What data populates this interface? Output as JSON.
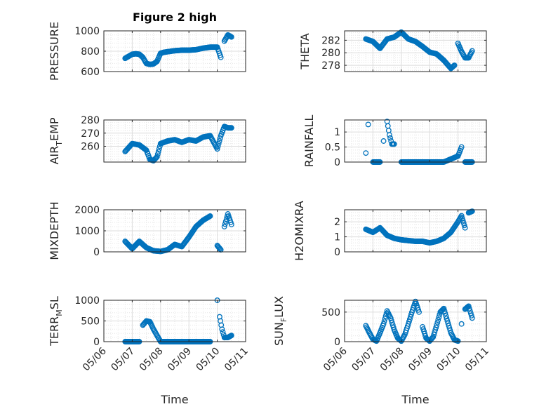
{
  "chart_data": [
    {
      "type": "scatter",
      "title": "Figure 2 high",
      "ylabel": {
        "main": "PRESSURE",
        "sub": "",
        "tail": ""
      },
      "xlabel": "",
      "xlim": [
        "05/06",
        "05/11"
      ],
      "ylim": [
        600,
        1000
      ],
      "yticks": [
        600,
        800,
        1000
      ],
      "grid": true,
      "x": [
        "05/06 18:00",
        "05/07 00:00",
        "05/07 03:00",
        "05/07 06:00",
        "05/07 09:00",
        "05/07 12:00",
        "05/07 15:00",
        "05/07 18:00",
        "05/07 21:00",
        "05/08 00:00",
        "05/08 03:00",
        "05/08 06:00",
        "05/08 09:00",
        "05/08 12:00",
        "05/08 18:00",
        "05/09 00:00",
        "05/09 06:00",
        "05/09 12:00",
        "05/09 18:00",
        "05/10 00:00",
        "05/10 03:00",
        "05/10 06:00",
        "05/10 09:00",
        "05/10 12:00"
      ],
      "y": [
        730,
        770,
        775,
        770,
        740,
        680,
        670,
        675,
        700,
        780,
        790,
        795,
        800,
        805,
        810,
        810,
        815,
        830,
        840,
        840,
        740,
        900,
        960,
        940
      ]
    },
    {
      "type": "scatter",
      "title": "",
      "ylabel": {
        "main": "THETA",
        "sub": "",
        "tail": ""
      },
      "xlabel": "",
      "xlim": [
        "05/06",
        "05/11"
      ],
      "ylim": [
        277,
        283.5
      ],
      "yticks": [
        278,
        280,
        282
      ],
      "grid": true,
      "x": [
        "05/06 18:00",
        "05/07 00:00",
        "05/07 06:00",
        "05/07 12:00",
        "05/07 18:00",
        "05/08 00:00",
        "05/08 06:00",
        "05/08 12:00",
        "05/08 18:00",
        "05/09 00:00",
        "05/09 06:00",
        "05/09 12:00",
        "05/09 18:00",
        "05/09 21:00",
        "05/10 00:00",
        "05/10 03:00",
        "05/10 06:00",
        "05/10 09:00",
        "05/10 12:00"
      ],
      "y": [
        282.2,
        281.8,
        280.7,
        282.2,
        282.5,
        283.3,
        282.2,
        281.8,
        281.0,
        280.1,
        279.8,
        278.8,
        277.5,
        278.0,
        281.5,
        280.2,
        279.2,
        279.2,
        280.3
      ]
    },
    {
      "type": "scatter",
      "title": "",
      "ylabel": {
        "main": "AIR",
        "sub": "T",
        "tail": "EMP"
      },
      "xlabel": "",
      "xlim": [
        "05/06",
        "05/11"
      ],
      "ylim": [
        248,
        280
      ],
      "yticks": [
        260,
        270,
        280
      ],
      "grid": true,
      "x": [
        "05/06 18:00",
        "05/07 00:00",
        "05/07 06:00",
        "05/07 12:00",
        "05/07 15:00",
        "05/07 18:00",
        "05/07 21:00",
        "05/08 00:00",
        "05/08 06:00",
        "05/08 12:00",
        "05/08 18:00",
        "05/09 00:00",
        "05/09 06:00",
        "05/09 12:00",
        "05/09 18:00",
        "05/10 00:00",
        "05/10 03:00",
        "05/10 06:00",
        "05/10 09:00",
        "05/10 12:00"
      ],
      "y": [
        256,
        262,
        261,
        257,
        250,
        249,
        252,
        262,
        264,
        265,
        263,
        265,
        264,
        267,
        268,
        258,
        268,
        275,
        274,
        274
      ]
    },
    {
      "type": "scatter",
      "title": "",
      "ylabel": {
        "main": "RAINFALL",
        "sub": "",
        "tail": ""
      },
      "xlabel": "",
      "xlim": [
        "05/06",
        "05/11"
      ],
      "ylim": [
        0,
        1.4
      ],
      "yticks": [
        0,
        0.5,
        1
      ],
      "grid": true,
      "x": [
        "05/06 18:00",
        "05/06 20:00",
        "05/07 00:00",
        "05/07 06:00",
        "05/07 09:00",
        "05/07 12:00",
        "05/07 14:00",
        "05/07 16:00",
        "05/07 18:00",
        "05/08 00:00",
        "05/08 12:00",
        "05/09 00:00",
        "05/09 12:00",
        "05/10 00:00",
        "05/10 03:00",
        "05/10 06:00",
        "05/10 12:00"
      ],
      "y": [
        0.3,
        1.25,
        0,
        0,
        0.7,
        1.35,
        0.9,
        0.6,
        0.6,
        0,
        0,
        0,
        0,
        0.2,
        0.5,
        0,
        0
      ]
    },
    {
      "type": "scatter",
      "title": "",
      "ylabel": {
        "main": "MIXDEPTH",
        "sub": "",
        "tail": ""
      },
      "xlabel": "",
      "xlim": [
        "05/06",
        "05/11"
      ],
      "ylim": [
        0,
        2000
      ],
      "yticks": [
        0,
        1000,
        2000
      ],
      "grid": true,
      "x": [
        "05/06 18:00",
        "05/07 00:00",
        "05/07 06:00",
        "05/07 12:00",
        "05/07 18:00",
        "05/08 00:00",
        "05/08 06:00",
        "05/08 12:00",
        "05/08 18:00",
        "05/09 00:00",
        "05/09 06:00",
        "05/09 12:00",
        "05/09 18:00",
        "05/10 00:00",
        "05/10 03:00",
        "05/10 06:00",
        "05/10 09:00",
        "05/10 12:00"
      ],
      "y": [
        500,
        150,
        500,
        200,
        50,
        20,
        100,
        350,
        250,
        700,
        1200,
        1500,
        1700,
        300,
        100,
        1200,
        1800,
        1300
      ]
    },
    {
      "type": "scatter",
      "title": "",
      "ylabel": {
        "main": "H2OMIXRA",
        "sub": "",
        "tail": ""
      },
      "xlabel": "",
      "xlim": [
        "05/06",
        "05/11"
      ],
      "ylim": [
        0,
        2.8
      ],
      "yticks": [
        0,
        1,
        2
      ],
      "grid": true,
      "x": [
        "05/06 18:00",
        "05/07 00:00",
        "05/07 06:00",
        "05/07 12:00",
        "05/07 18:00",
        "05/08 00:00",
        "05/08 06:00",
        "05/08 12:00",
        "05/08 18:00",
        "05/09 00:00",
        "05/09 06:00",
        "05/09 12:00",
        "05/09 18:00",
        "05/10 00:00",
        "05/10 03:00",
        "05/10 06:00",
        "05/10 09:00",
        "05/10 12:00"
      ],
      "y": [
        1.5,
        1.3,
        1.6,
        1.1,
        0.9,
        0.8,
        0.75,
        0.7,
        0.7,
        0.6,
        0.7,
        0.9,
        1.3,
        2.0,
        2.4,
        1.6,
        2.6,
        2.7
      ]
    },
    {
      "type": "scatter",
      "title": "",
      "ylabel": {
        "main": "TERR",
        "sub": "M",
        "tail": "SL"
      },
      "xlabel": "Time",
      "xlim": [
        "05/06",
        "05/11"
      ],
      "ylim": [
        0,
        1000
      ],
      "yticks": [
        0,
        500,
        1000
      ],
      "xticks": [
        "05/06",
        "05/07",
        "05/08",
        "05/09",
        "05/10",
        "05/11"
      ],
      "grid": true,
      "x": [
        "05/06 18:00",
        "05/07 00:00",
        "05/07 06:00",
        "05/07 09:00",
        "05/07 12:00",
        "05/07 15:00",
        "05/07 18:00",
        "05/08 00:00",
        "05/08 06:00",
        "05/08 12:00",
        "05/08 18:00",
        "05/09 00:00",
        "05/09 06:00",
        "05/09 12:00",
        "05/09 18:00",
        "05/10 00:00",
        "05/10 02:00",
        "05/10 04:00",
        "05/10 06:00",
        "05/10 09:00",
        "05/10 12:00"
      ],
      "y": [
        0,
        0,
        0,
        400,
        500,
        480,
        300,
        0,
        0,
        0,
        0,
        0,
        0,
        0,
        0,
        1000,
        600,
        300,
        100,
        100,
        150
      ]
    },
    {
      "type": "scatter",
      "title": "",
      "ylabel": {
        "main": "SUN",
        "sub": "F",
        "tail": "LUX"
      },
      "xlabel": "Time",
      "xlim": [
        "05/06",
        "05/11"
      ],
      "ylim": [
        0,
        700
      ],
      "yticks": [
        0,
        500
      ],
      "xticks": [
        "05/06",
        "05/07",
        "05/08",
        "05/09",
        "05/10",
        "05/11"
      ],
      "grid": true,
      "x": [
        "05/06 18:00",
        "05/06 21:00",
        "05/07 00:00",
        "05/07 03:00",
        "05/07 06:00",
        "05/07 09:00",
        "05/07 12:00",
        "05/07 15:00",
        "05/07 18:00",
        "05/07 21:00",
        "05/08 00:00",
        "05/08 03:00",
        "05/08 06:00",
        "05/08 09:00",
        "05/08 12:00",
        "05/08 15:00",
        "05/08 18:00",
        "05/08 21:00",
        "05/09 00:00",
        "05/09 03:00",
        "05/09 06:00",
        "05/09 09:00",
        "05/09 12:00",
        "05/09 15:00",
        "05/09 18:00",
        "05/09 21:00",
        "05/10 00:00",
        "05/10 03:00",
        "05/10 06:00",
        "05/10 09:00",
        "05/10 12:00"
      ],
      "y": [
        270,
        150,
        40,
        10,
        150,
        300,
        520,
        400,
        200,
        60,
        10,
        120,
        300,
        500,
        680,
        500,
        250,
        60,
        10,
        80,
        280,
        500,
        560,
        350,
        150,
        30,
        10,
        300,
        550,
        600,
        400
      ]
    }
  ]
}
